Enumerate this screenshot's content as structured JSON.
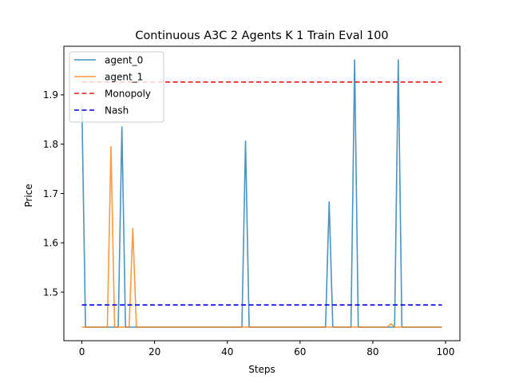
{
  "chart_data": {
    "type": "line",
    "title": "Continuous A3C 2 Agents K 1 Train Eval 100",
    "xlabel": "Steps",
    "ylabel": "Price",
    "xlim": [
      -4.95,
      103.95
    ],
    "ylim": [
      1.4015,
      1.9985
    ],
    "xticks": [
      0,
      20,
      40,
      60,
      80,
      100
    ],
    "yticks": [
      1.5,
      1.6,
      1.7,
      1.8,
      1.9
    ],
    "xtick_labels": [
      "0",
      "20",
      "40",
      "60",
      "80",
      "100"
    ],
    "ytick_labels": [
      "1.5",
      "1.6",
      "1.7",
      "1.8",
      "1.9"
    ],
    "legend_position": "top-left",
    "grid": false,
    "baseline": 1.429,
    "series": [
      {
        "name": "agent_0",
        "color": "#1f77b4",
        "style": "solid",
        "spikes": [
          [
            0,
            1.88
          ],
          [
            11,
            1.835
          ],
          [
            45,
            1.806
          ],
          [
            68,
            1.683
          ],
          [
            75,
            1.971
          ],
          [
            87,
            1.971
          ]
        ]
      },
      {
        "name": "agent_1",
        "color": "#ff7f0e",
        "style": "solid",
        "spikes": [
          [
            8,
            1.795
          ],
          [
            14,
            1.629
          ],
          [
            85,
            1.436
          ]
        ]
      },
      {
        "name": "Monopoly",
        "color": "#e41a1c",
        "style": "dashed",
        "constant": 1.926
      },
      {
        "name": "Nash",
        "color": "#0000ee",
        "style": "dashed",
        "constant": 1.474
      }
    ]
  }
}
